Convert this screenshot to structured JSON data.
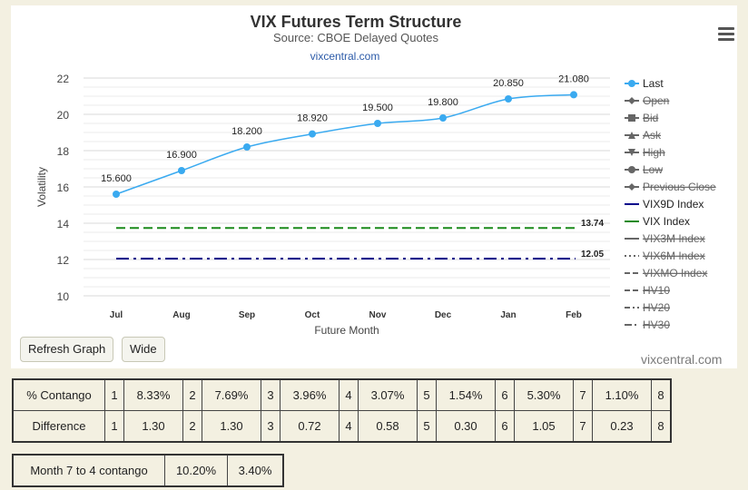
{
  "chart_data": {
    "type": "line",
    "title": "VIX Futures Term Structure",
    "subtitle": "Source: CBOE Delayed Quotes",
    "link_text": "vixcentral.com",
    "xlabel": "Future Month",
    "ylabel": "Volatility",
    "categories": [
      "Jul",
      "Aug",
      "Sep",
      "Oct",
      "Nov",
      "Dec",
      "Jan",
      "Feb"
    ],
    "ylim": [
      10,
      22
    ],
    "yticks": [
      10,
      12,
      14,
      16,
      18,
      20,
      22
    ],
    "grid": true,
    "legend_position": "right",
    "series": [
      {
        "name": "Last",
        "values": [
          15.6,
          16.9,
          18.2,
          18.92,
          19.5,
          19.8,
          20.85,
          21.08
        ],
        "labels": [
          "15.600",
          "16.900",
          "18.200",
          "18.920",
          "19.500",
          "19.800",
          "20.850",
          "21.080"
        ],
        "color": "#3aaaf0"
      },
      {
        "name": "VIX9D Index",
        "value": 12.05,
        "label": "12.05",
        "color": "#00008b"
      },
      {
        "name": "VIX Index",
        "value": 13.74,
        "label": "13.74",
        "color": "#1a8a1a"
      }
    ],
    "legend": [
      {
        "name": "Last",
        "symbol": "circle",
        "line": "solid",
        "color": "#3aaaf0",
        "hidden": false
      },
      {
        "name": "Open",
        "symbol": "diamond",
        "line": "solid",
        "color": "#666666",
        "hidden": true
      },
      {
        "name": "Bid",
        "symbol": "square",
        "line": "solid",
        "color": "#666666",
        "hidden": true
      },
      {
        "name": "Ask",
        "symbol": "triangle",
        "line": "solid",
        "color": "#666666",
        "hidden": true
      },
      {
        "name": "High",
        "symbol": "triangle-down",
        "line": "solid",
        "color": "#666666",
        "hidden": true
      },
      {
        "name": "Low",
        "symbol": "circle",
        "line": "solid",
        "color": "#666666",
        "hidden": true
      },
      {
        "name": "Previous Close",
        "symbol": "diamond",
        "line": "solid",
        "color": "#666666",
        "hidden": true
      },
      {
        "name": "VIX9D Index",
        "symbol": "none",
        "line": "solid",
        "color": "#00008b",
        "hidden": false
      },
      {
        "name": "VIX Index",
        "symbol": "none",
        "line": "solid",
        "color": "#1a8a1a",
        "hidden": false
      },
      {
        "name": "VIX3M Index",
        "symbol": "none",
        "line": "solid",
        "color": "#666666",
        "hidden": true
      },
      {
        "name": "VIX6M Index",
        "symbol": "none",
        "line": "dotted",
        "color": "#666666",
        "hidden": true
      },
      {
        "name": "VIXMO Index",
        "symbol": "none",
        "line": "dashed",
        "color": "#666666",
        "hidden": true
      },
      {
        "name": "HV10",
        "symbol": "none",
        "line": "dashed",
        "color": "#666666",
        "hidden": true
      },
      {
        "name": "HV20",
        "symbol": "none",
        "line": "dashdot",
        "color": "#666666",
        "hidden": true
      },
      {
        "name": "HV30",
        "symbol": "none",
        "line": "longdashdot",
        "color": "#666666",
        "hidden": true
      }
    ]
  },
  "buttons": {
    "refresh": "Refresh Graph",
    "wide": "Wide"
  },
  "credit": "vixcentral.com",
  "contango_table": {
    "rows": [
      {
        "label": "% Contango",
        "cells": [
          "1",
          "8.33%",
          "2",
          "7.69%",
          "3",
          "3.96%",
          "4",
          "3.07%",
          "5",
          "1.54%",
          "6",
          "5.30%",
          "7",
          "1.10%",
          "8"
        ]
      },
      {
        "label": "Difference",
        "cells": [
          "1",
          "1.30",
          "2",
          "1.30",
          "3",
          "0.72",
          "4",
          "0.58",
          "5",
          "0.30",
          "6",
          "1.05",
          "7",
          "0.23",
          "8"
        ]
      }
    ]
  },
  "month_table": {
    "label": "Month 7 to 4 contango",
    "values": [
      "10.20%",
      "3.40%"
    ]
  }
}
